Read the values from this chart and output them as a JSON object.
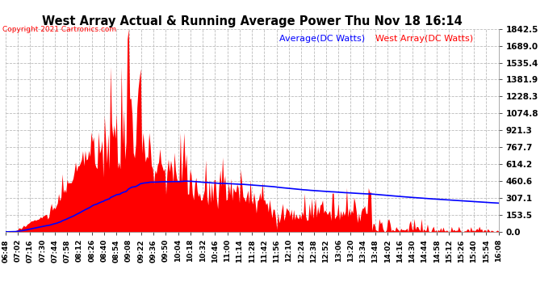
{
  "title": "West Array Actual & Running Average Power Thu Nov 18 16:14",
  "copyright": "Copyright 2021 Cartronics.com",
  "legend_avg": "Average(DC Watts)",
  "legend_west": "West Array(DC Watts)",
  "ylabel_values": [
    1842.5,
    1689.0,
    1535.4,
    1381.9,
    1228.3,
    1074.8,
    921.3,
    767.7,
    614.2,
    460.6,
    307.1,
    153.5,
    0.0
  ],
  "ymax": 1842.5,
  "ymin": 0.0,
  "bg_color": "#ffffff",
  "plot_bg_color": "#ffffff",
  "grid_color": "#bbbbbb",
  "bar_color": "#ff0000",
  "avg_line_color": "#0000ff",
  "title_color": "#000000",
  "copyright_color": "#ff0000",
  "legend_avg_color": "#0000ff",
  "legend_west_color": "#ff0000",
  "tick_label_color": "#000000",
  "x_tick_labels": [
    "06:48",
    "07:02",
    "07:16",
    "07:30",
    "07:44",
    "07:58",
    "08:12",
    "08:26",
    "08:40",
    "08:54",
    "09:08",
    "09:22",
    "09:36",
    "09:50",
    "10:04",
    "10:18",
    "10:32",
    "10:46",
    "11:00",
    "11:14",
    "11:28",
    "11:42",
    "11:56",
    "12:10",
    "12:24",
    "12:38",
    "12:52",
    "13:06",
    "13:20",
    "13:34",
    "13:48",
    "14:02",
    "14:16",
    "14:30",
    "14:44",
    "14:58",
    "15:12",
    "15:26",
    "15:40",
    "15:54",
    "16:08"
  ],
  "figsize": [
    6.9,
    3.75
  ],
  "dpi": 100
}
